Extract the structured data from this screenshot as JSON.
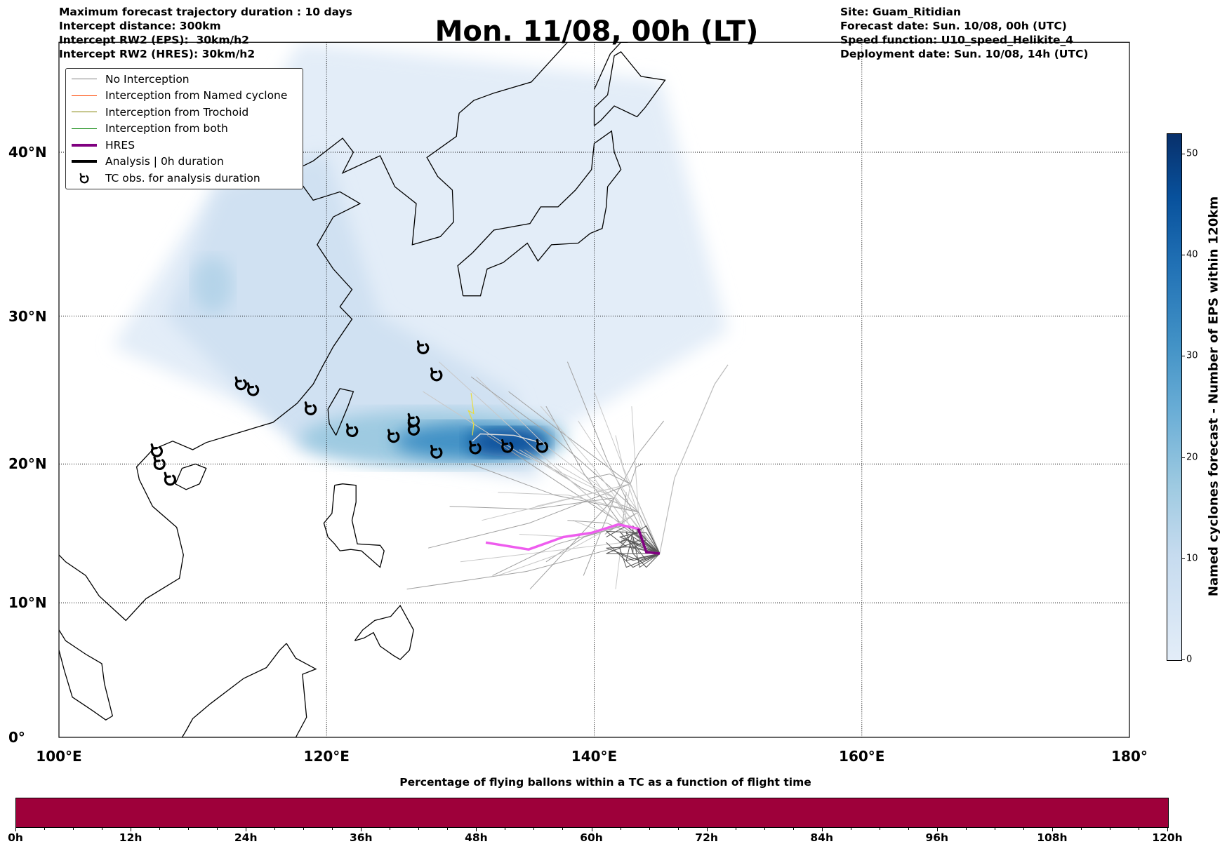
{
  "header_left": [
    "Maximum forecast trajectory duration : 10 days",
    "Intercept distance: 300km",
    "Intercept RW2 (EPS):  30km/h2",
    "Intercept RW2 (HRES): 30km/h2"
  ],
  "title": "Mon. 11/08, 00h (LT)",
  "header_right": [
    "Site: Guam_Ritidian",
    "Forecast date: Sun. 10/08, 00h (UTC)",
    "Speed function: U10_speed_Helikite_4",
    "Deployment date: Sun. 10/08, 14h (UTC)"
  ],
  "legend": [
    {
      "label": "No Interception",
      "color": "#808080",
      "kind": "line"
    },
    {
      "label": "Interception from Named cyclone",
      "color": "#ff4500",
      "kind": "line"
    },
    {
      "label": "Interception from Trochoid",
      "color": "#808000",
      "kind": "line"
    },
    {
      "label": "Interception from both",
      "color": "#008000",
      "kind": "line"
    },
    {
      "label": "HRES",
      "color": "#800080",
      "kind": "thick"
    },
    {
      "label": "Analysis | 0h duration",
      "color": "#000000",
      "kind": "thick"
    },
    {
      "label": "TC obs. for analysis duration",
      "color": "#000000",
      "kind": "symbol"
    }
  ],
  "map": {
    "lon_labels": [
      "100°E",
      "120°E",
      "140°E",
      "160°E",
      "180°"
    ],
    "lat_labels": [
      "0°",
      "10°N",
      "20°N",
      "30°N",
      "40°N"
    ],
    "lon_range": [
      100,
      180
    ],
    "lat_range": [
      0,
      46
    ],
    "site": {
      "name": "Guam_Ritidian",
      "lon": 144.9,
      "lat": 13.6
    },
    "tc_obs": [
      [
        113.6,
        25.5
      ],
      [
        114.5,
        25.1
      ],
      [
        118.8,
        23.8
      ],
      [
        121.9,
        22.3
      ],
      [
        125.0,
        21.9
      ],
      [
        126.5,
        23.0
      ],
      [
        126.5,
        22.4
      ],
      [
        128.2,
        20.8
      ],
      [
        127.2,
        27.9
      ],
      [
        128.2,
        26.1
      ],
      [
        131.1,
        21.1
      ],
      [
        133.5,
        21.2
      ],
      [
        136.1,
        21.2
      ],
      [
        107.3,
        20.9
      ],
      [
        107.5,
        20.0
      ],
      [
        108.3,
        18.9
      ]
    ],
    "hres_track": [
      [
        144.9,
        13.6
      ],
      [
        143.9,
        13.7
      ],
      [
        143.3,
        15.4
      ],
      [
        141.8,
        15.7
      ],
      [
        139.8,
        15.1
      ],
      [
        137.7,
        14.8
      ],
      [
        135.1,
        13.9
      ],
      [
        131.9,
        14.4
      ]
    ],
    "hres_color": "#ee5cee"
  },
  "colorbar": {
    "label": "Named cyclones forecast - Number of EPS within 120km",
    "ticks": [
      "0",
      "10",
      "20",
      "30",
      "40",
      "50"
    ],
    "max": 52
  },
  "flight_time": {
    "title": "Percentage of flying ballons within a TC as a function of flight time",
    "ticks": [
      "0h",
      "12h",
      "24h",
      "36h",
      "48h",
      "60h",
      "72h",
      "84h",
      "96h",
      "108h",
      "120h"
    ],
    "bar_color": "#9e003a",
    "percent": 100
  }
}
